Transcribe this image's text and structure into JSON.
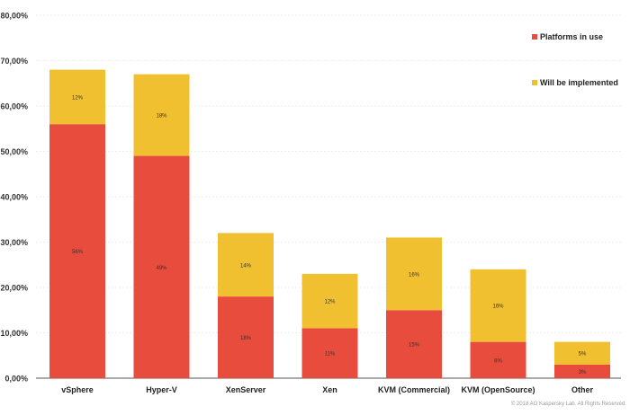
{
  "chart_data": {
    "type": "bar",
    "stacked": true,
    "categories": [
      "vSphere",
      "Hyper-V",
      "XenServer",
      "Xen",
      "KVM (Commercial)",
      "KVM (OpenSource)",
      "Other"
    ],
    "series": [
      {
        "name": "Platforms in use",
        "color": "#e84c3d",
        "values": [
          56,
          49,
          18,
          11,
          15,
          8,
          3
        ],
        "labels": [
          "56%",
          "49%",
          "18%",
          "11%",
          "15%",
          "8%",
          "3%"
        ]
      },
      {
        "name": "Will be implemented",
        "color": "#f0c030",
        "values": [
          12,
          18,
          14,
          12,
          16,
          16,
          5
        ],
        "labels": [
          "12%",
          "18%",
          "14%",
          "12%",
          "16%",
          "16%",
          "5%"
        ]
      }
    ],
    "ylim": [
      0,
      80
    ],
    "yticks": [
      0,
      10,
      20,
      30,
      40,
      50,
      60,
      70,
      80
    ],
    "ytick_labels": [
      "0,00%",
      "10,00%",
      "20,00%",
      "30,00%",
      "40,00%",
      "50,00%",
      "60,00%",
      "70,00%",
      "80,00%"
    ],
    "grid": true,
    "legend_position": "right"
  },
  "footer": {
    "copyright": "© 2018 AO Kaspersky Lab. All Rights Reserved."
  }
}
